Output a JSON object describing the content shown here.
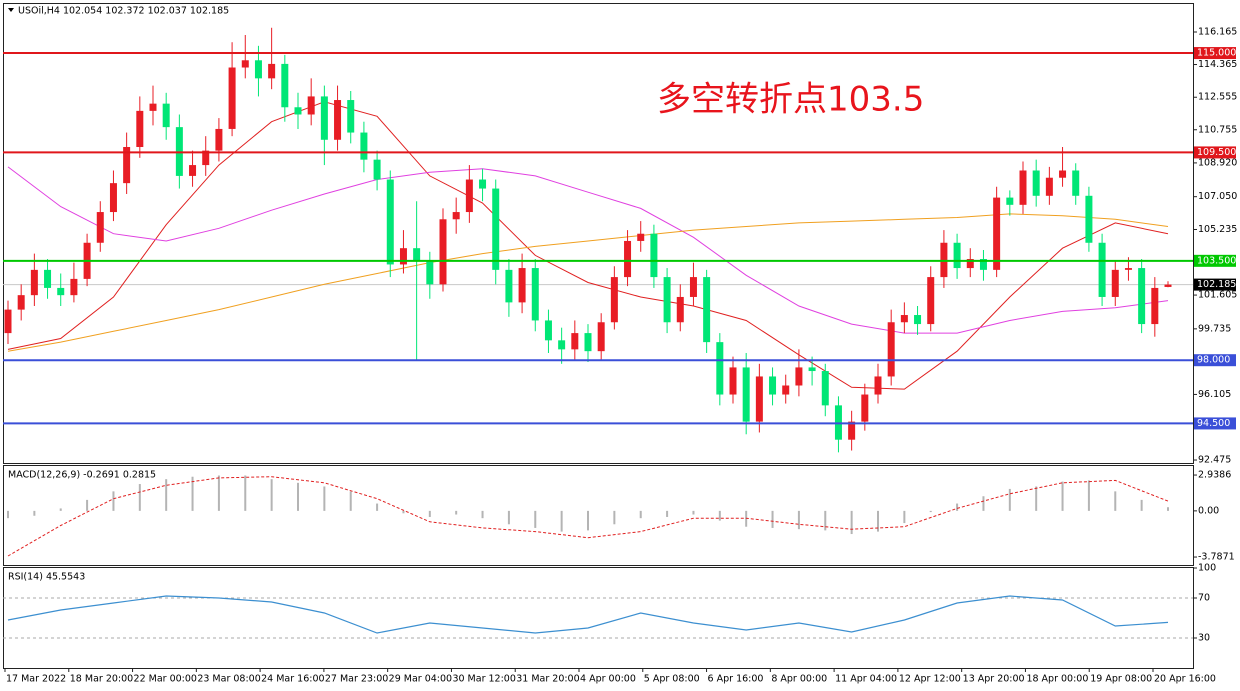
{
  "header": "USOil,H4  102.054 102.372 102.037 102.185",
  "chart_data": [
    {
      "type": "candlestick",
      "annotation": "多空转折点103.5",
      "up_color": "#e81d25",
      "down_color": "#00e676",
      "ylim": [
        92.31,
        117.66
      ],
      "yticks": [
        116.165,
        114.365,
        112.555,
        110.755,
        {
          "value": 108.92,
          "label": "108.920"
        },
        {
          "value": 107.05,
          "label": "107.050"
        },
        105.235,
        101.605,
        99.735,
        96.105,
        92.475
      ],
      "x_labels": [
        "17 Mar 2022",
        "18 Mar 20:00",
        "22 Mar 00:00",
        "23 Mar 08:00",
        "24 Mar 16:00",
        "27 Mar 23:00",
        "29 Mar 04:00",
        "30 Mar 12:00",
        "31 Mar 20:00",
        "4 Apr 00:00",
        "5 Apr 08:00",
        "6 Apr 16:00",
        "8 Apr 00:00",
        "11 Apr 04:00",
        "12 Apr 12:00",
        "13 Apr 20:00",
        "18 Apr 00:00",
        "19 Apr 08:00",
        "20 Apr 16:00"
      ],
      "levels": [
        {
          "value": 115,
          "label": "115.000",
          "color": "#e0161b"
        },
        {
          "value": 109.5,
          "label": "109.500",
          "color": "#e0161b"
        },
        {
          "value": 103.5,
          "label": "103.500",
          "color": "#00c800"
        },
        {
          "value": 98,
          "label": "98.000",
          "color": "#3a4fd8"
        },
        {
          "value": 94.5,
          "label": "94.500",
          "color": "#3a4fd8"
        }
      ],
      "current_price": {
        "value": 102.185,
        "label": "102.185"
      },
      "overlays": [
        {
          "color": "#e02020",
          "values": [
            98.6,
            99.2,
            101.5,
            105.5,
            108.8,
            111.2,
            112.3,
            111.5,
            108.2,
            106.7,
            103.8,
            102.3,
            101.5,
            101.0,
            100.2,
            98.3,
            96.5,
            96.4,
            98.5,
            101.5,
            104.2,
            105.6,
            105.0
          ]
        },
        {
          "color": "#e040e0",
          "values": [
            108.7,
            106.5,
            105.0,
            104.6,
            105.3,
            106.3,
            107.2,
            108.0,
            108.4,
            108.6,
            108.2,
            107.3,
            106.4,
            104.8,
            102.7,
            101.0,
            100.0,
            99.5,
            99.5,
            100.2,
            100.7,
            100.9,
            101.3
          ]
        },
        {
          "color": "#f0a020",
          "values": [
            98.5,
            99.0,
            99.6,
            100.2,
            100.8,
            101.5,
            102.2,
            102.8,
            103.4,
            103.9,
            104.3,
            104.6,
            104.9,
            105.2,
            105.4,
            105.6,
            105.7,
            105.8,
            105.9,
            106.1,
            106.0,
            105.8,
            105.4
          ]
        }
      ],
      "ohlc": [
        [
          99.5,
          101.3,
          98.9,
          100.8
        ],
        [
          100.8,
          102.2,
          100.2,
          101.6
        ],
        [
          101.6,
          103.9,
          101.0,
          103.0
        ],
        [
          103.0,
          103.6,
          101.4,
          102.0
        ],
        [
          102.0,
          102.8,
          101.0,
          101.6
        ],
        [
          101.6,
          103.4,
          101.2,
          102.5
        ],
        [
          102.5,
          105.0,
          102.1,
          104.5
        ],
        [
          104.5,
          106.8,
          104.0,
          106.2
        ],
        [
          106.2,
          108.5,
          105.7,
          107.8
        ],
        [
          107.8,
          110.6,
          107.2,
          109.8
        ],
        [
          109.8,
          112.6,
          109.2,
          111.8
        ],
        [
          111.8,
          113.2,
          111.0,
          112.2
        ],
        [
          112.2,
          112.8,
          110.2,
          110.9
        ],
        [
          110.9,
          111.6,
          107.5,
          108.2
        ],
        [
          108.2,
          109.6,
          107.6,
          108.8
        ],
        [
          108.8,
          110.4,
          108.2,
          109.6
        ],
        [
          109.6,
          111.4,
          109.0,
          110.8
        ],
        [
          110.8,
          115.6,
          110.4,
          114.2
        ],
        [
          114.2,
          116.0,
          113.6,
          114.6
        ],
        [
          114.6,
          115.4,
          112.6,
          113.6
        ],
        [
          113.6,
          116.4,
          113.0,
          114.4
        ],
        [
          114.4,
          114.9,
          111.2,
          112.0
        ],
        [
          112.0,
          112.8,
          110.8,
          111.6
        ],
        [
          111.6,
          113.6,
          111.0,
          112.6
        ],
        [
          112.6,
          113.2,
          108.8,
          110.2
        ],
        [
          110.2,
          113.2,
          109.6,
          112.4
        ],
        [
          112.4,
          112.9,
          110.0,
          110.6
        ],
        [
          110.6,
          111.2,
          108.4,
          109.1
        ],
        [
          109.1,
          109.6,
          107.4,
          108.0
        ],
        [
          108.0,
          108.5,
          102.6,
          103.3
        ],
        [
          103.3,
          105.2,
          102.8,
          104.2
        ],
        [
          104.2,
          106.8,
          98.0,
          103.5
        ],
        [
          103.5,
          104.0,
          101.4,
          102.2
        ],
        [
          102.2,
          106.4,
          101.8,
          105.8
        ],
        [
          105.8,
          107.0,
          105.0,
          106.2
        ],
        [
          106.2,
          108.8,
          105.6,
          108.0
        ],
        [
          108.0,
          108.6,
          106.8,
          107.5
        ],
        [
          107.5,
          108.0,
          102.2,
          103.0
        ],
        [
          103.0,
          103.6,
          100.4,
          101.2
        ],
        [
          101.2,
          103.9,
          100.6,
          103.1
        ],
        [
          103.1,
          103.6,
          99.6,
          100.2
        ],
        [
          100.2,
          100.8,
          98.4,
          99.1
        ],
        [
          99.1,
          99.8,
          97.8,
          98.6
        ],
        [
          98.6,
          100.2,
          98.0,
          99.5
        ],
        [
          99.5,
          100.0,
          97.9,
          98.5
        ],
        [
          98.5,
          100.6,
          98.0,
          100.1
        ],
        [
          100.1,
          103.2,
          99.7,
          102.6
        ],
        [
          102.6,
          105.2,
          102.1,
          104.6
        ],
        [
          104.6,
          105.7,
          104.0,
          105.0
        ],
        [
          105.0,
          105.5,
          102.0,
          102.6
        ],
        [
          102.6,
          103.1,
          99.5,
          100.1
        ],
        [
          100.1,
          102.2,
          99.6,
          101.5
        ],
        [
          101.5,
          103.4,
          101.0,
          102.6
        ],
        [
          102.6,
          103.0,
          98.4,
          99.0
        ],
        [
          99.0,
          99.5,
          95.5,
          96.1
        ],
        [
          96.1,
          98.2,
          95.6,
          97.6
        ],
        [
          97.6,
          98.4,
          93.9,
          94.6
        ],
        [
          94.6,
          97.8,
          94.0,
          97.1
        ],
        [
          97.1,
          97.6,
          95.5,
          96.1
        ],
        [
          96.1,
          97.2,
          95.6,
          96.6
        ],
        [
          96.6,
          98.6,
          96.0,
          97.6
        ],
        [
          97.6,
          98.2,
          96.6,
          97.4
        ],
        [
          97.4,
          97.8,
          94.9,
          95.5
        ],
        [
          95.5,
          96.0,
          92.9,
          93.6
        ],
        [
          93.6,
          95.2,
          93.0,
          94.6
        ],
        [
          94.6,
          96.7,
          94.1,
          96.1
        ],
        [
          96.1,
          97.8,
          95.6,
          97.1
        ],
        [
          97.1,
          100.8,
          96.6,
          100.1
        ],
        [
          100.1,
          101.2,
          99.5,
          100.5
        ],
        [
          100.5,
          101.0,
          99.4,
          100.0
        ],
        [
          100.0,
          103.2,
          99.6,
          102.6
        ],
        [
          102.6,
          105.2,
          102.0,
          104.5
        ],
        [
          104.5,
          105.0,
          102.5,
          103.1
        ],
        [
          103.1,
          104.2,
          102.6,
          103.6
        ],
        [
          103.6,
          104.1,
          102.4,
          103.0
        ],
        [
          103.0,
          107.6,
          102.6,
          107.0
        ],
        [
          107.0,
          107.4,
          106.0,
          106.6
        ],
        [
          106.6,
          109.0,
          106.1,
          108.5
        ],
        [
          108.5,
          109.1,
          106.5,
          107.1
        ],
        [
          107.1,
          108.7,
          106.6,
          108.1
        ],
        [
          108.1,
          109.8,
          107.6,
          108.5
        ],
        [
          108.5,
          108.9,
          106.6,
          107.1
        ],
        [
          107.1,
          107.6,
          104.0,
          104.5
        ],
        [
          104.5,
          105.0,
          101.0,
          101.5
        ],
        [
          101.5,
          103.5,
          101.0,
          103.0
        ],
        [
          103.0,
          103.7,
          102.4,
          103.1
        ],
        [
          103.1,
          103.6,
          99.5,
          100.0
        ],
        [
          100.0,
          102.6,
          99.3,
          102.0
        ],
        [
          102.054,
          102.372,
          102.037,
          102.185
        ]
      ]
    },
    {
      "type": "macd",
      "title": "MACD(12,26,9) -0.2691 0.2815",
      "ylim": [
        -4.44,
        3.68
      ],
      "yticks": [
        2.9386,
        {
          "value": 0,
          "label": "0.00"
        },
        -3.7871
      ],
      "histogram_color": "#b4b4b4",
      "signal_color": "#e02020",
      "histogram": [
        -0.6,
        -0.4,
        0.2,
        0.9,
        1.6,
        2.2,
        2.6,
        2.8,
        2.9,
        2.9,
        2.6,
        2.3,
        2.0,
        1.6,
        0.6,
        -0.2,
        -0.5,
        -0.3,
        -0.6,
        -1.1,
        -1.4,
        -1.7,
        -1.6,
        -1.1,
        -0.6,
        -0.5,
        -0.3,
        -0.8,
        -1.3,
        -1.4,
        -1.5,
        -1.6,
        -1.9,
        -1.7,
        -1.0,
        -0.1,
        0.6,
        1.2,
        1.8,
        2.0,
        2.4,
        2.5,
        1.6,
        0.9,
        0.3
      ],
      "signal": [
        -3.7,
        -1.2,
        1.0,
        2.1,
        2.7,
        2.8,
        2.3,
        1.0,
        -0.9,
        -1.4,
        -1.7,
        -2.2,
        -1.7,
        -0.6,
        -0.6,
        -1.1,
        -1.5,
        -1.3,
        0.2,
        1.4,
        2.3,
        2.5,
        0.8
      ]
    },
    {
      "type": "line",
      "title": "RSI(14) 45.5543",
      "ylim": [
        0,
        100
      ],
      "yticks": [
        100,
        70,
        30
      ],
      "levels": [
        70,
        30
      ],
      "color": "#3c8fd0",
      "values": [
        48,
        58,
        65,
        72,
        70,
        66,
        55,
        35,
        45,
        40,
        35,
        40,
        55,
        45,
        38,
        45,
        36,
        48,
        65,
        72,
        68,
        42,
        45.5543
      ]
    }
  ]
}
